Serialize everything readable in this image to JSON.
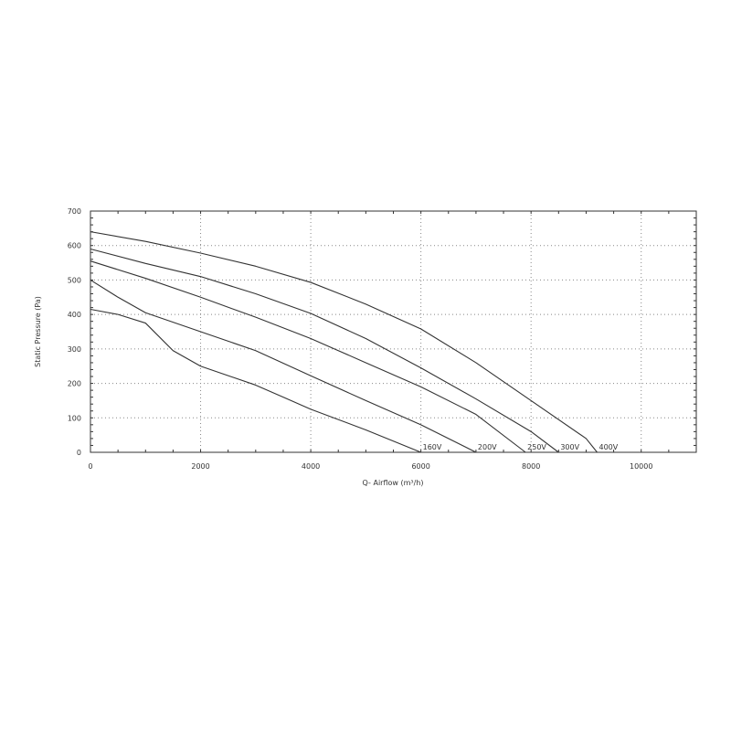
{
  "chart_data": {
    "type": "line",
    "title": "",
    "xlabel": "Q- Airflow (m³/h)",
    "ylabel": "Static Pressure (Pa)",
    "xlim": [
      0,
      11000
    ],
    "ylim": [
      0,
      700
    ],
    "xticks": [
      0,
      2000,
      4000,
      6000,
      8000,
      10000
    ],
    "yticks": [
      0,
      100,
      200,
      300,
      400,
      500,
      600,
      700
    ],
    "grid": true,
    "line_color": "#333333",
    "series": [
      {
        "name": "160V",
        "x": [
          0,
          500,
          1000,
          1500,
          2000,
          3000,
          3500,
          4000,
          5000,
          6000
        ],
        "y": [
          415,
          400,
          375,
          295,
          250,
          195,
          160,
          125,
          65,
          0
        ]
      },
      {
        "name": "200V",
        "x": [
          0,
          500,
          1000,
          2000,
          3000,
          4000,
          5000,
          6000,
          7000
        ],
        "y": [
          500,
          450,
          405,
          350,
          295,
          222,
          150,
          80,
          0
        ]
      },
      {
        "name": "250V",
        "x": [
          0,
          1000,
          2000,
          3000,
          4000,
          5000,
          6000,
          7000,
          7900
        ],
        "y": [
          555,
          505,
          450,
          392,
          330,
          260,
          190,
          110,
          0
        ]
      },
      {
        "name": "300V",
        "x": [
          0,
          1000,
          2000,
          3000,
          4000,
          5000,
          6000,
          7000,
          8000,
          8500
        ],
        "y": [
          590,
          548,
          510,
          460,
          403,
          330,
          245,
          155,
          60,
          0
        ]
      },
      {
        "name": "400V",
        "x": [
          0,
          1000,
          2000,
          3000,
          4000,
          5000,
          6000,
          7000,
          8000,
          9000,
          9200
        ],
        "y": [
          640,
          612,
          578,
          540,
          493,
          430,
          358,
          260,
          150,
          40,
          0
        ]
      }
    ]
  }
}
